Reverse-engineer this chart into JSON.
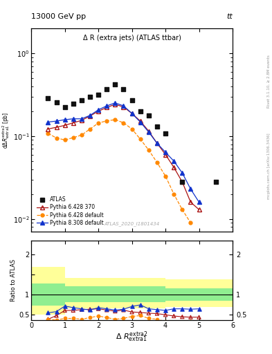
{
  "title_top": "13000 GeV pp",
  "title_top_right": "tt",
  "plot_title": "Δ R (extra jets) (ATLAS ttbar)",
  "watermark": "ATLAS_2020_I1801434",
  "right_label_top": "Rivet 3.1.10, ≥ 2.8M events",
  "right_label_bottom": "mcplots.cern.ch [arXiv:1306.3436]",
  "xlim": [
    0,
    6
  ],
  "ylim_main_lo": 0.007,
  "ylim_main_hi": 2.0,
  "ylim_ratio_lo": 0.35,
  "ylim_ratio_hi": 2.35,
  "atlas_x": [
    0.5,
    0.75,
    1.0,
    1.25,
    1.5,
    1.75,
    2.0,
    2.25,
    2.5,
    2.75,
    3.0,
    3.25,
    3.5,
    3.75,
    4.0,
    4.5,
    5.5
  ],
  "atlas_y": [
    0.285,
    0.255,
    0.225,
    0.248,
    0.272,
    0.298,
    0.318,
    0.368,
    0.418,
    0.368,
    0.272,
    0.198,
    0.178,
    0.13,
    0.108,
    0.028,
    0.028
  ],
  "p6_370_x": [
    0.5,
    0.75,
    1.0,
    1.25,
    1.5,
    1.75,
    2.0,
    2.25,
    2.5,
    2.75,
    3.0,
    3.25,
    3.5,
    3.75,
    4.0,
    4.25,
    4.5,
    4.75,
    5.0
  ],
  "p6_370_y": [
    0.122,
    0.128,
    0.135,
    0.145,
    0.155,
    0.175,
    0.2,
    0.222,
    0.242,
    0.225,
    0.188,
    0.152,
    0.115,
    0.082,
    0.06,
    0.042,
    0.028,
    0.016,
    0.013
  ],
  "p6_def_x": [
    0.5,
    0.75,
    1.0,
    1.25,
    1.5,
    1.75,
    2.0,
    2.25,
    2.5,
    2.75,
    3.0,
    3.25,
    3.5,
    3.75,
    4.0,
    4.25,
    4.5,
    4.75
  ],
  "p6_def_y": [
    0.108,
    0.095,
    0.09,
    0.096,
    0.103,
    0.122,
    0.144,
    0.153,
    0.158,
    0.145,
    0.122,
    0.092,
    0.068,
    0.048,
    0.033,
    0.02,
    0.013,
    0.009
  ],
  "p8_def_x": [
    0.5,
    0.75,
    1.0,
    1.25,
    1.5,
    1.75,
    2.0,
    2.25,
    2.5,
    2.75,
    3.0,
    3.25,
    3.5,
    3.75,
    4.0,
    4.25,
    4.5,
    4.75,
    5.0
  ],
  "p8_def_y": [
    0.148,
    0.152,
    0.158,
    0.162,
    0.162,
    0.178,
    0.208,
    0.232,
    0.252,
    0.232,
    0.188,
    0.148,
    0.112,
    0.082,
    0.064,
    0.05,
    0.036,
    0.023,
    0.016
  ],
  "band_yellow_edges": [
    0.0,
    0.5,
    1.0,
    1.5,
    2.0,
    2.5,
    3.0,
    3.5,
    4.0,
    4.5,
    5.0,
    5.5,
    6.0
  ],
  "band_yellow_lo": [
    0.5,
    0.5,
    0.65,
    0.65,
    0.65,
    0.65,
    0.65,
    0.65,
    0.68,
    0.68,
    0.68,
    0.68,
    0.68
  ],
  "band_yellow_hi": [
    1.7,
    1.7,
    1.42,
    1.42,
    1.42,
    1.42,
    1.42,
    1.42,
    1.38,
    1.38,
    1.38,
    1.38,
    1.38
  ],
  "band_green_edges": [
    0.0,
    0.5,
    1.0,
    1.5,
    2.0,
    2.5,
    3.0,
    3.5,
    4.0,
    4.5,
    5.0,
    5.5,
    6.0
  ],
  "band_green_lo": [
    0.72,
    0.72,
    0.8,
    0.8,
    0.8,
    0.8,
    0.8,
    0.8,
    0.84,
    0.84,
    0.84,
    0.84,
    0.84
  ],
  "band_green_hi": [
    1.28,
    1.28,
    1.2,
    1.2,
    1.2,
    1.2,
    1.2,
    1.2,
    1.16,
    1.16,
    1.16,
    1.16,
    1.16
  ],
  "ratio_p6_370_x": [
    0.5,
    0.75,
    1.0,
    1.25,
    1.5,
    1.75,
    2.0,
    2.25,
    2.5,
    2.75,
    3.0,
    3.25,
    3.5,
    3.75,
    4.0,
    4.25,
    4.5,
    4.75,
    5.0
  ],
  "ratio_p6_370_y": [
    0.38,
    0.47,
    0.6,
    0.6,
    0.62,
    0.63,
    0.64,
    0.61,
    0.58,
    0.61,
    0.56,
    0.55,
    0.53,
    0.52,
    0.49,
    0.46,
    0.44,
    0.43,
    0.43
  ],
  "ratio_p6_370_e": [
    0.02,
    0.02,
    0.02,
    0.02,
    0.02,
    0.02,
    0.02,
    0.02,
    0.02,
    0.02,
    0.02,
    0.02,
    0.02,
    0.02,
    0.02,
    0.02,
    0.02,
    0.02,
    0.02
  ],
  "ratio_p6_def_x": [
    0.5,
    0.75,
    1.0,
    1.25,
    1.5,
    1.75,
    2.0,
    2.25,
    2.5,
    2.75,
    3.0,
    3.25,
    3.5,
    3.75,
    4.0,
    4.25,
    4.5,
    4.75
  ],
  "ratio_p6_def_y": [
    0.38,
    0.36,
    0.4,
    0.4,
    0.38,
    0.42,
    0.46,
    0.42,
    0.38,
    0.4,
    0.45,
    0.47,
    0.4,
    0.38,
    0.32,
    0.28,
    0.24,
    0.33
  ],
  "ratio_p6_def_e": [
    0.02,
    0.02,
    0.02,
    0.02,
    0.02,
    0.02,
    0.02,
    0.02,
    0.02,
    0.02,
    0.02,
    0.02,
    0.02,
    0.02,
    0.02,
    0.02,
    0.02,
    0.02
  ],
  "ratio_p8_def_x": [
    0.5,
    0.75,
    1.0,
    1.25,
    1.5,
    1.75,
    2.0,
    2.25,
    2.5,
    2.75,
    3.0,
    3.25,
    3.5,
    3.75,
    4.0,
    4.25,
    4.5,
    4.75,
    5.0
  ],
  "ratio_p8_def_y": [
    0.54,
    0.57,
    0.71,
    0.67,
    0.64,
    0.61,
    0.67,
    0.64,
    0.61,
    0.63,
    0.7,
    0.74,
    0.64,
    0.62,
    0.6,
    0.64,
    0.64,
    0.63,
    0.64
  ],
  "ratio_p8_def_e": [
    0.015,
    0.015,
    0.015,
    0.015,
    0.015,
    0.015,
    0.015,
    0.015,
    0.015,
    0.015,
    0.015,
    0.015,
    0.015,
    0.015,
    0.015,
    0.015,
    0.015,
    0.015,
    0.015
  ],
  "color_atlas": "#111111",
  "color_p6_370": "#aa1111",
  "color_p6_def": "#ff8800",
  "color_p8_def": "#1133cc",
  "color_green": "#90ee90",
  "color_yellow": "#ffff99"
}
